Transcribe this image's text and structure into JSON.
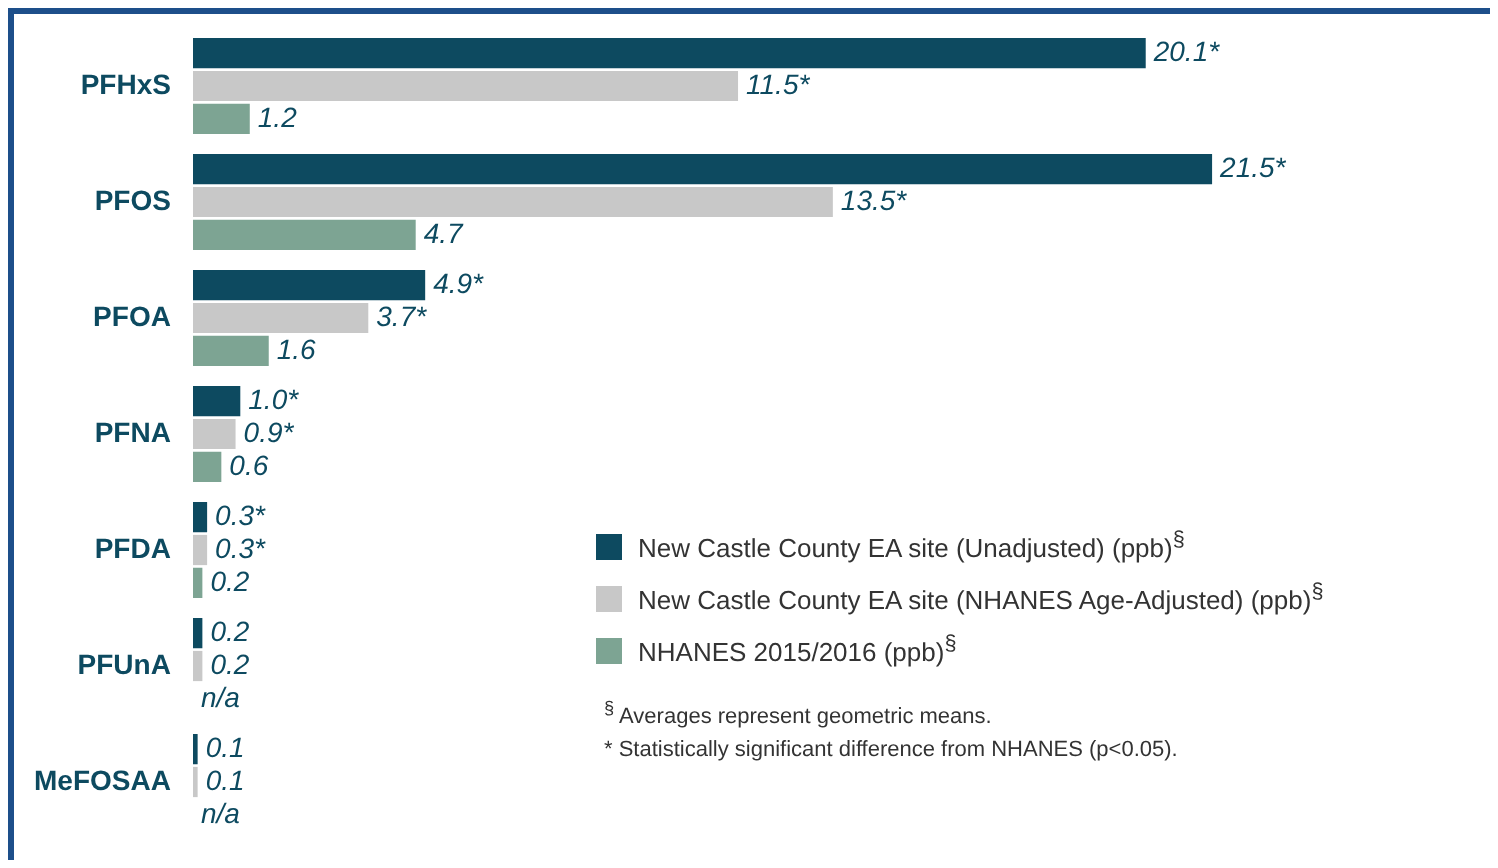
{
  "chart_data": {
    "type": "bar",
    "orientation": "horizontal",
    "categories": [
      "PFHxS",
      "PFOS",
      "PFOA",
      "PFNA",
      "PFDA",
      "PFUnA",
      "MeFOSAA"
    ],
    "series": [
      {
        "name": "New Castle County EA site (Unadjusted) (ppb)$^{§}$",
        "color": "#0d4a60",
        "values": [
          20.1,
          21.5,
          4.9,
          1.0,
          0.3,
          0.2,
          0.1
        ],
        "value_labels": [
          "20.1*",
          "21.5*",
          "4.9*",
          "1.0*",
          "0.3*",
          "0.2",
          "0.1"
        ]
      },
      {
        "name": "New Castle County EA site (NHANES Age-Adjusted) (ppb)$^{§}$",
        "color": "#c8c8c8",
        "values": [
          11.5,
          13.5,
          3.7,
          0.9,
          0.3,
          0.2,
          0.1
        ],
        "value_labels": [
          "11.5*",
          "13.5*",
          "3.7*",
          "0.9*",
          "0.3*",
          "0.2",
          "0.1"
        ]
      },
      {
        "name": "NHANES 2015/2016 (ppb)$^{§}$",
        "color": "#7da493",
        "values": [
          1.2,
          4.7,
          1.6,
          0.6,
          0.2,
          null,
          null
        ],
        "value_labels": [
          "1.2",
          "4.7",
          "1.6",
          "0.6",
          "0.2",
          "n/a",
          "n/a"
        ]
      }
    ],
    "tick_labels": "y",
    "legend": "bottom right",
    "annotations": [
      "$^{§}$ Averages represent geometric means.",
      "* Statistically significant difference from NHANES (p<0.05)."
    ]
  }
}
